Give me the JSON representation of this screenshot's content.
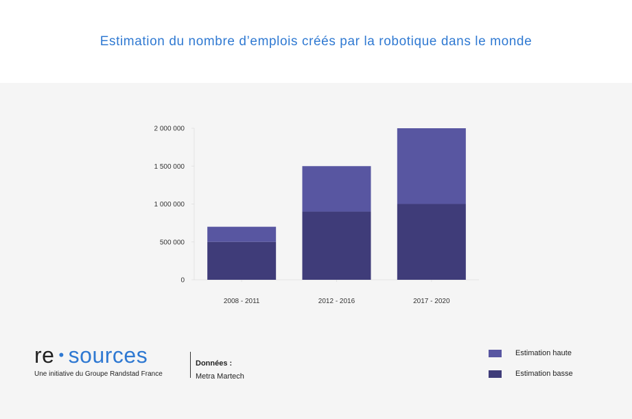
{
  "title": "Estimation du nombre d’emplois créés par la robotique dans le monde",
  "colors": {
    "high": "#5856a1",
    "low": "#3f3c79",
    "accent": "#2f79d2"
  },
  "chart_data": {
    "type": "bar",
    "stacked": true,
    "title": "Estimation du nombre d’emplois créés par la robotique dans le monde",
    "categories": [
      "2008 - 2011",
      "2012 - 2016",
      "2017 - 2020"
    ],
    "series": [
      {
        "name": "Estimation basse",
        "values": [
          500000,
          900000,
          1000000
        ]
      },
      {
        "name": "Estimation haute",
        "values": [
          200000,
          600000,
          1000000
        ]
      }
    ],
    "ylim": [
      0,
      2000000
    ],
    "yticks": [
      0,
      500000,
      1000000,
      1500000,
      2000000
    ],
    "ytick_labels": [
      "0",
      "500 000",
      "1 000 000",
      "1 500 000",
      "2 000 000"
    ],
    "xlabel": "",
    "ylabel": "",
    "legend_position": "bottom-right",
    "grid": false
  },
  "branding": {
    "logo_re": "re",
    "logo_dot": "•",
    "logo_sources": "sources",
    "tagline": "Une initiative du Groupe Randstad France"
  },
  "source": {
    "label": "Données :",
    "value": "Metra Martech"
  },
  "legend": [
    {
      "label": "Estimation haute",
      "color_key": "high"
    },
    {
      "label": "Estimation basse",
      "color_key": "low"
    }
  ]
}
